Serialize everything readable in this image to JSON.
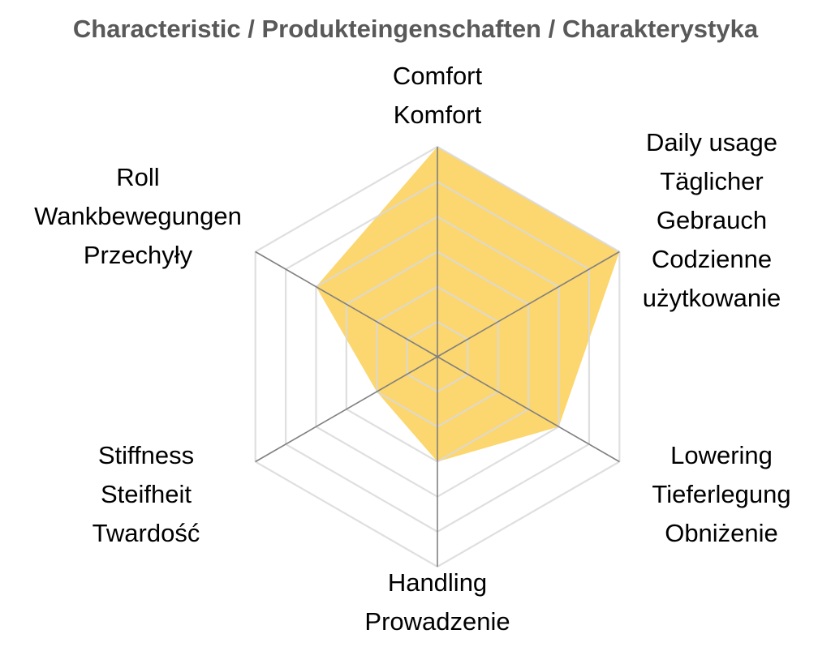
{
  "chart_data": {
    "type": "radar",
    "title": "Characteristic / Produkteingenschaften / Charakterystyka",
    "categories": [
      [
        "Comfort",
        "Komfort"
      ],
      [
        "Daily usage",
        "Täglicher",
        "Gebrauch",
        "Codzienne",
        "użytkowanie"
      ],
      [
        "Lowering",
        "Tieferlegung",
        "Obniżenie"
      ],
      [
        "Handling",
        "Prowadzenie"
      ],
      [
        "Stiffness",
        "Steifheit",
        "Twardość"
      ],
      [
        "Roll",
        "Wankbewegungen",
        "Przechyły"
      ]
    ],
    "values": [
      6,
      6,
      4,
      3,
      2,
      4
    ],
    "rlim": [
      0,
      6
    ],
    "grid": true,
    "fill_color": "#FCD466",
    "grid_color": "#D9D9D9",
    "axis_color": "#808080"
  }
}
